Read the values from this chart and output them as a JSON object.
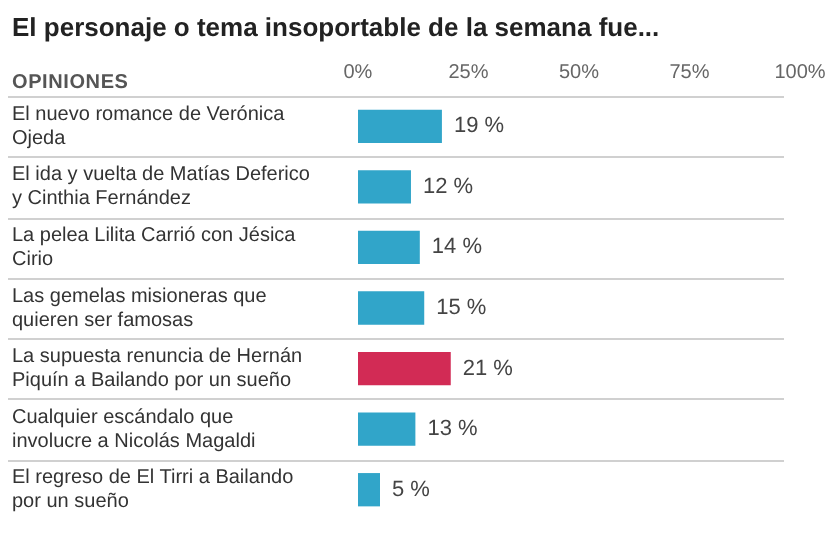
{
  "chart_data": {
    "type": "bar",
    "orientation": "horizontal",
    "title": "El personaje o tema insoportable de la semana fue...",
    "ylabel": "OPINIONES",
    "categories": [
      "El nuevo romance de Verónica Ojeda",
      "El ida y vuelta de Matías Deferico y Cinthia Fernández",
      "La pelea Lilita Carrió con Jésica Cirio",
      "Las gemelas misioneras que quieren ser famosas",
      "La supuesta renuncia de Hernán Piquín a Bailando por un sueño",
      "Cualquier escándalo que involucre a Nicolás Magaldi",
      "El regreso de El Tirri a Bailando por un sueño"
    ],
    "values": [
      19,
      12,
      14,
      15,
      21,
      13,
      5
    ],
    "colors": [
      "#31a5c9",
      "#31a5c9",
      "#31a5c9",
      "#31a5c9",
      "#d22b55",
      "#31a5c9",
      "#31a5c9"
    ],
    "value_labels": [
      "19 %",
      "12 %",
      "14 %",
      "15 %",
      "21 %",
      "13 %",
      "5 %"
    ],
    "xlim": [
      0,
      100
    ],
    "xticks": [
      {
        "value": 0,
        "label": "0%"
      },
      {
        "value": 25,
        "label": "25%"
      },
      {
        "value": 50,
        "label": "50%"
      },
      {
        "value": 75,
        "label": "75%"
      },
      {
        "value": 100,
        "label": "100%"
      }
    ],
    "grid": false,
    "legend": false
  }
}
